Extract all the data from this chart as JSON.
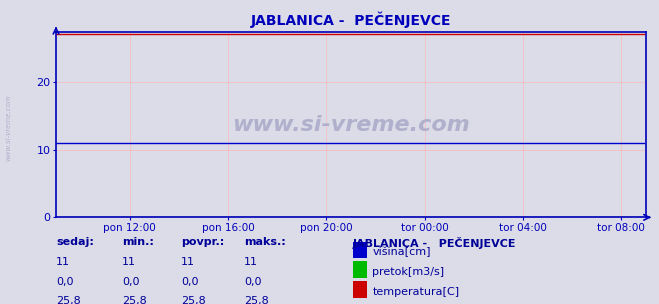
{
  "title": "JABLANICA -  PEČENJEVCE",
  "background_color": "#dcdce8",
  "plot_bg_color": "#dcdce8",
  "xlim": [
    0,
    288
  ],
  "ylim": [
    0,
    27.5
  ],
  "yticks": [
    0,
    10,
    20
  ],
  "xtick_labels": [
    "pon 12:00",
    "pon 16:00",
    "pon 20:00",
    "tor 00:00",
    "tor 04:00",
    "tor 08:00"
  ],
  "xtick_positions": [
    36,
    84,
    132,
    180,
    228,
    276
  ],
  "visina_value": 11,
  "pretok_value": 0.0,
  "temperatura_yval": 27.2,
  "visina_color": "#0000cc",
  "pretok_color": "#00bb00",
  "temperatura_color": "#cc0000",
  "grid_color": "#ffb0b0",
  "axis_color": "#0000bb",
  "watermark": "www.si-vreme.com",
  "watermark_color": "#b0b0cc",
  "legend_title": "JABLANICA -   PEČENJEVCE",
  "legend_labels": [
    "višina[cm]",
    "pretok[m3/s]",
    "temperatura[C]"
  ],
  "legend_colors": [
    "#0000cc",
    "#00bb00",
    "#cc0000"
  ],
  "table_headers": [
    "sedaj:",
    "min.:",
    "povpr.:",
    "maks.:"
  ],
  "table_rows": [
    [
      "11",
      "11",
      "11",
      "11"
    ],
    [
      "0,0",
      "0,0",
      "0,0",
      "0,0"
    ],
    [
      "25,8",
      "25,8",
      "25,8",
      "25,8"
    ]
  ],
  "table_color": "#000099",
  "n_points": 288
}
